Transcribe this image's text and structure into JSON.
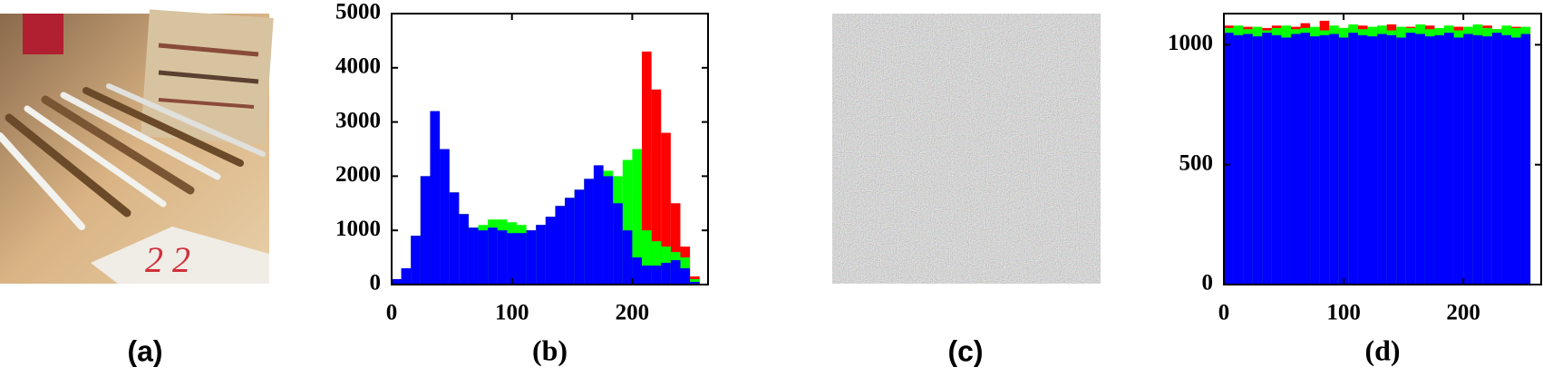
{
  "images": [
    {
      "caption": "(a)"
    },
    {
      "caption": "(c)"
    }
  ],
  "chart_data": [
    {
      "type": "histogram",
      "caption": "(b)",
      "bins": [
        0,
        8,
        16,
        24,
        32,
        40,
        48,
        56,
        64,
        72,
        80,
        88,
        96,
        104,
        112,
        120,
        128,
        136,
        144,
        152,
        160,
        168,
        176,
        184,
        192,
        200,
        208,
        216,
        224,
        232,
        240,
        248,
        256
      ],
      "series": [
        {
          "color": "#ff0000",
          "values": [
            100,
            300,
            900,
            2000,
            3200,
            2500,
            1700,
            1300,
            1050,
            1000,
            1050,
            1000,
            950,
            950,
            1000,
            1100,
            1250,
            1450,
            1600,
            1750,
            1950,
            2200,
            2000,
            1500,
            1000,
            1600,
            4300,
            3600,
            2800,
            1500,
            700,
            150
          ]
        },
        {
          "color": "#00ff00",
          "values": [
            100,
            300,
            900,
            2000,
            3200,
            2500,
            1700,
            1300,
            1050,
            1100,
            1200,
            1200,
            1150,
            1100,
            1000,
            1100,
            1250,
            1450,
            1600,
            1750,
            1950,
            2200,
            2100,
            2000,
            2300,
            2500,
            1000,
            800,
            700,
            600,
            500,
            100
          ]
        },
        {
          "color": "#0000ff",
          "values": [
            100,
            300,
            900,
            2000,
            3200,
            2500,
            1700,
            1300,
            1050,
            1000,
            1050,
            1000,
            950,
            950,
            1000,
            1100,
            1250,
            1450,
            1600,
            1750,
            1950,
            2200,
            2000,
            1500,
            1000,
            500,
            350,
            350,
            400,
            450,
            300,
            50
          ]
        }
      ],
      "xlim": [
        0,
        263
      ],
      "ylim": [
        0,
        5000
      ],
      "xticks": [
        0,
        100,
        200
      ],
      "yticks": [
        0,
        1000,
        2000,
        3000,
        4000,
        5000
      ]
    },
    {
      "type": "histogram",
      "caption": "(d)",
      "bins": [
        0,
        8,
        16,
        24,
        32,
        40,
        48,
        56,
        64,
        72,
        80,
        88,
        96,
        104,
        112,
        120,
        128,
        136,
        144,
        152,
        160,
        168,
        176,
        184,
        192,
        200,
        208,
        216,
        224,
        232,
        240,
        248,
        256
      ],
      "series": [
        {
          "color": "#ff0000",
          "values": [
            1080,
            1070,
            1075,
            1065,
            1070,
            1080,
            1060,
            1075,
            1090,
            1070,
            1100,
            1065,
            1070,
            1075,
            1080,
            1065,
            1070,
            1085,
            1060,
            1075,
            1070,
            1080,
            1065,
            1070,
            1075,
            1060,
            1070,
            1080,
            1065,
            1070,
            1075,
            1070
          ]
        },
        {
          "color": "#00ff00",
          "values": [
            1070,
            1080,
            1065,
            1075,
            1060,
            1070,
            1080,
            1065,
            1070,
            1075,
            1060,
            1080,
            1070,
            1085,
            1065,
            1075,
            1080,
            1060,
            1075,
            1070,
            1085,
            1065,
            1070,
            1080,
            1060,
            1075,
            1085,
            1070,
            1065,
            1080,
            1070,
            1075
          ]
        },
        {
          "color": "#0000ff",
          "values": [
            1050,
            1040,
            1045,
            1035,
            1050,
            1040,
            1030,
            1045,
            1050,
            1035,
            1040,
            1045,
            1030,
            1050,
            1040,
            1035,
            1045,
            1040,
            1030,
            1050,
            1045,
            1035,
            1040,
            1050,
            1030,
            1045,
            1040,
            1035,
            1050,
            1040,
            1030,
            1045
          ]
        }
      ],
      "xlim": [
        0,
        265
      ],
      "ylim": [
        0,
        1130
      ],
      "xticks": [
        0,
        100,
        200
      ],
      "yticks": [
        0,
        500,
        1000
      ]
    }
  ]
}
